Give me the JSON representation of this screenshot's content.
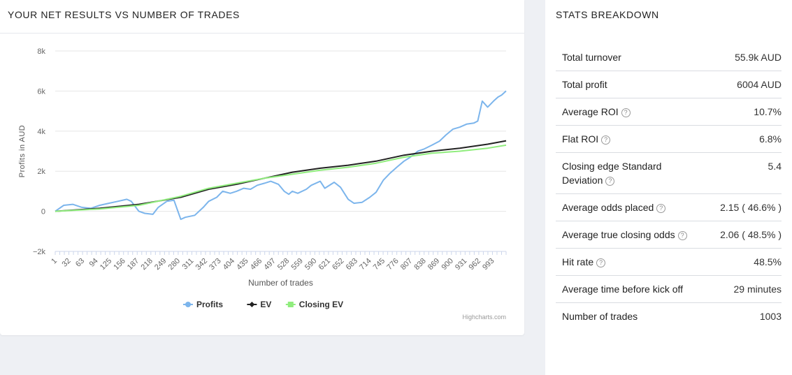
{
  "left_panel": {
    "title": "YOUR NET RESULTS VS NUMBER OF TRADES"
  },
  "right_panel": {
    "title": "STATS BREAKDOWN",
    "rows": [
      {
        "label": "Total turnover",
        "value": "55.9k AUD",
        "help": false
      },
      {
        "label": "Total profit",
        "value": "6004 AUD",
        "help": false
      },
      {
        "label": "Average ROI",
        "value": "10.7%",
        "help": true
      },
      {
        "label": "Flat ROI",
        "value": "6.8%",
        "help": true
      },
      {
        "label": "Closing edge Standard Deviation",
        "value": "5.4",
        "help": true
      },
      {
        "label": "Average odds placed",
        "value": "2.15 ( 46.6% )",
        "help": true
      },
      {
        "label": "Average true closing odds",
        "value": "2.06 ( 48.5% )",
        "help": true
      },
      {
        "label": "Hit rate",
        "value": "48.5%",
        "help": true
      },
      {
        "label": "Average time before kick off",
        "value": "29 minutes",
        "help": false
      },
      {
        "label": "Number of trades",
        "value": "1003",
        "help": false
      }
    ]
  },
  "chart_data": {
    "type": "line",
    "xlabel": "Number of trades",
    "ylabel": "Profits in AUD",
    "ylim": [
      -2000,
      8000
    ],
    "y_ticks": [
      -2000,
      0,
      2000,
      4000,
      6000,
      8000
    ],
    "y_tick_labels": [
      "−2k",
      "0",
      "2k",
      "4k",
      "6k",
      "8k"
    ],
    "x_range": [
      1,
      1003
    ],
    "x_tick_labels": [
      "1",
      "32",
      "63",
      "94",
      "125",
      "156",
      "187",
      "218",
      "249",
      "280",
      "311",
      "342",
      "373",
      "404",
      "435",
      "466",
      "497",
      "528",
      "559",
      "590",
      "621",
      "652",
      "683",
      "714",
      "745",
      "776",
      "807",
      "838",
      "869",
      "900",
      "931",
      "962",
      "993"
    ],
    "grid": true,
    "legend_position": "bottom-center",
    "credit": "Highcharts.com",
    "series": [
      {
        "name": "Profits",
        "color": "#7cb5ec",
        "x": [
          1,
          20,
          40,
          60,
          80,
          100,
          120,
          140,
          160,
          170,
          187,
          200,
          218,
          230,
          249,
          265,
          280,
          290,
          311,
          330,
          342,
          360,
          373,
          390,
          404,
          420,
          435,
          450,
          466,
          480,
          497,
          510,
          520,
          528,
          540,
          559,
          570,
          590,
          600,
          621,
          635,
          652,
          665,
          683,
          700,
          714,
          730,
          745,
          760,
          776,
          790,
          807,
          820,
          838,
          855,
          869,
          885,
          900,
          915,
          931,
          940,
          950,
          962,
          975,
          985,
          993,
          1003
        ],
        "y": [
          0,
          300,
          350,
          200,
          150,
          300,
          400,
          500,
          600,
          500,
          0,
          -100,
          -150,
          200,
          500,
          550,
          -400,
          -300,
          -200,
          200,
          500,
          700,
          1000,
          900,
          1000,
          1150,
          1100,
          1300,
          1400,
          1500,
          1350,
          1000,
          850,
          1000,
          900,
          1100,
          1300,
          1500,
          1150,
          1450,
          1200,
          600,
          400,
          450,
          700,
          950,
          1550,
          1900,
          2200,
          2500,
          2700,
          3000,
          3100,
          3300,
          3500,
          3800,
          4100,
          4200,
          4350,
          4400,
          4500,
          5500,
          5200,
          5500,
          5700,
          5800,
          6004
        ]
      },
      {
        "name": "EV",
        "color": "#222222",
        "x": [
          1,
          100,
          187,
          280,
          342,
          404,
          466,
          528,
          590,
          652,
          714,
          776,
          838,
          900,
          962,
          1003
        ],
        "y": [
          0,
          150,
          350,
          700,
          1100,
          1350,
          1650,
          1950,
          2150,
          2300,
          2500,
          2800,
          3000,
          3150,
          3350,
          3520
        ]
      },
      {
        "name": "Closing EV",
        "color": "#90ed7d",
        "x": [
          1,
          100,
          187,
          280,
          342,
          404,
          466,
          528,
          590,
          652,
          714,
          776,
          838,
          900,
          962,
          1003
        ],
        "y": [
          0,
          120,
          300,
          750,
          1150,
          1400,
          1650,
          1850,
          2050,
          2200,
          2400,
          2700,
          2900,
          3000,
          3150,
          3300
        ]
      }
    ]
  }
}
